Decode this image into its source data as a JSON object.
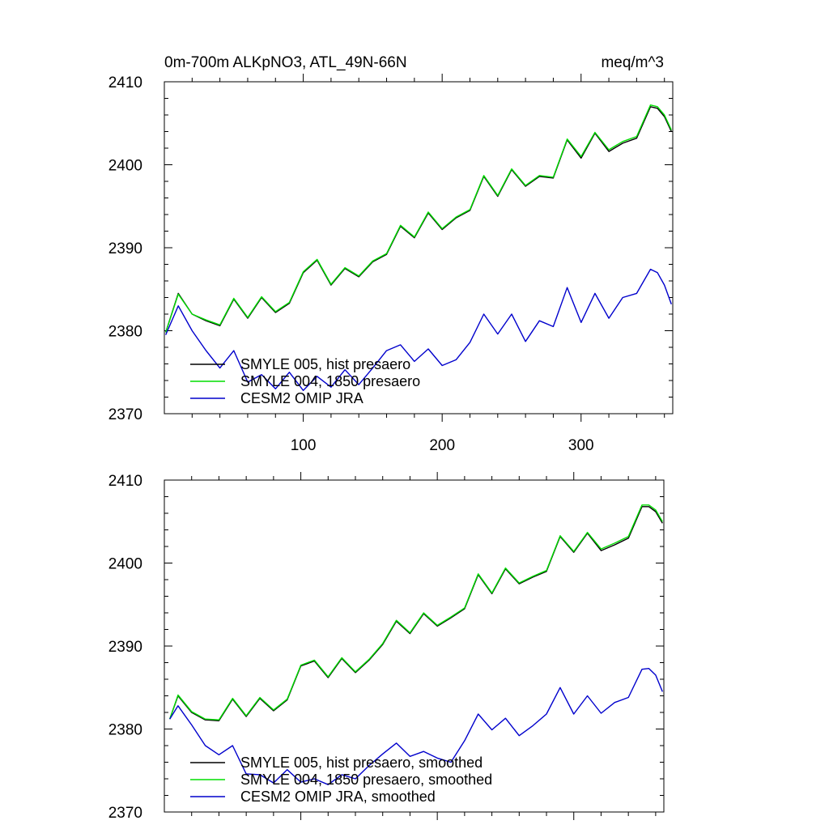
{
  "chart_data": [
    {
      "type": "line",
      "title_left": "0m-700m ALKpNO3, ATL_49N-66N",
      "title_right": "meq/m^3",
      "xlabel": "",
      "ylabel": "",
      "xlim": [
        0,
        366
      ],
      "ylim": [
        2370,
        2410
      ],
      "xticks": [
        100,
        200,
        300
      ],
      "xtick_labels": [
        "100",
        "200",
        "300"
      ],
      "yticks": [
        2370,
        2380,
        2390,
        2400,
        2410
      ],
      "ytick_labels": [
        "2370",
        "2380",
        "2390",
        "2400",
        "2410"
      ],
      "legend_position": "bottom-left",
      "x": [
        1,
        10,
        20,
        30,
        40,
        50,
        60,
        70,
        80,
        90,
        100,
        110,
        120,
        130,
        140,
        150,
        160,
        170,
        180,
        190,
        200,
        210,
        220,
        230,
        240,
        250,
        260,
        270,
        280,
        290,
        300,
        310,
        320,
        330,
        340,
        350,
        355,
        360,
        365
      ],
      "series": [
        {
          "name": "SMYLE 005, hist presaero",
          "color": "#000000",
          "values": [
            2379.8,
            2384.5,
            2382.0,
            2381.2,
            2380.6,
            2383.8,
            2381.5,
            2384.0,
            2382.2,
            2383.3,
            2387.0,
            2388.5,
            2385.5,
            2387.5,
            2386.5,
            2388.3,
            2389.2,
            2392.6,
            2391.2,
            2394.2,
            2392.2,
            2393.6,
            2394.5,
            2398.6,
            2396.2,
            2399.4,
            2397.4,
            2398.6,
            2398.4,
            2403.0,
            2400.8,
            2403.8,
            2401.6,
            2402.6,
            2403.2,
            2407.0,
            2406.8,
            2405.8,
            2404.0
          ]
        },
        {
          "name": "SMYLE 004, 1850 presaero",
          "color": "#00dd00",
          "values": [
            2379.8,
            2384.4,
            2382.0,
            2381.3,
            2380.7,
            2383.9,
            2381.6,
            2384.1,
            2382.3,
            2383.4,
            2387.1,
            2388.6,
            2385.6,
            2387.6,
            2386.6,
            2388.4,
            2389.3,
            2392.7,
            2391.3,
            2394.3,
            2392.3,
            2393.7,
            2394.6,
            2398.7,
            2396.3,
            2399.5,
            2397.5,
            2398.7,
            2398.5,
            2403.1,
            2401.0,
            2403.9,
            2401.8,
            2402.8,
            2403.4,
            2407.2,
            2407.0,
            2406.0,
            2404.2
          ]
        },
        {
          "name": "CESM2 OMIP JRA",
          "color": "#0000cc",
          "values": [
            2379.5,
            2383.0,
            2380.0,
            2377.6,
            2375.5,
            2377.6,
            2373.8,
            2374.7,
            2373.0,
            2375.0,
            2372.8,
            2374.5,
            2373.2,
            2375.3,
            2373.5,
            2375.5,
            2377.6,
            2378.3,
            2376.3,
            2377.8,
            2375.8,
            2376.5,
            2378.6,
            2382.0,
            2379.6,
            2382.0,
            2378.7,
            2381.2,
            2380.5,
            2385.2,
            2381.0,
            2384.5,
            2381.5,
            2384.0,
            2384.5,
            2387.4,
            2387.0,
            2385.5,
            2383.2
          ]
        }
      ]
    },
    {
      "type": "line",
      "title_left": "",
      "title_right": "",
      "xlabel": "",
      "ylabel": "",
      "xlim": [
        0,
        366
      ],
      "ylim": [
        2370,
        2410
      ],
      "xticks": [
        100,
        200,
        300
      ],
      "yticks": [
        2370,
        2380,
        2390,
        2400,
        2410
      ],
      "ytick_labels": [
        "2370",
        "2380",
        "2390",
        "2400",
        "2410"
      ],
      "legend_position": "bottom-left",
      "x": [
        4,
        10,
        20,
        30,
        40,
        50,
        60,
        70,
        80,
        90,
        100,
        110,
        120,
        130,
        140,
        150,
        160,
        170,
        180,
        190,
        200,
        210,
        220,
        230,
        240,
        250,
        260,
        270,
        280,
        290,
        300,
        310,
        320,
        330,
        340,
        350,
        355,
        360,
        365
      ],
      "series": [
        {
          "name": "SMYLE 005, hist presaero, smoothed",
          "color": "#000000",
          "values": [
            2381.2,
            2384.0,
            2382.0,
            2381.1,
            2381.0,
            2383.6,
            2381.5,
            2383.7,
            2382.2,
            2383.5,
            2387.6,
            2388.2,
            2386.2,
            2388.5,
            2386.8,
            2388.3,
            2390.2,
            2393.0,
            2391.5,
            2393.9,
            2392.4,
            2393.4,
            2394.5,
            2398.6,
            2396.3,
            2399.3,
            2397.5,
            2398.3,
            2399.0,
            2403.2,
            2401.3,
            2403.6,
            2401.5,
            2402.2,
            2403.0,
            2406.8,
            2406.8,
            2406.2,
            2404.8
          ]
        },
        {
          "name": "SMYLE 004, 1850 presaero, smoothed",
          "color": "#00dd00",
          "values": [
            2381.2,
            2384.1,
            2382.1,
            2381.2,
            2381.1,
            2383.7,
            2381.6,
            2383.8,
            2382.3,
            2383.6,
            2387.7,
            2388.3,
            2386.3,
            2388.6,
            2386.9,
            2388.4,
            2390.3,
            2393.1,
            2391.6,
            2394.0,
            2392.5,
            2393.5,
            2394.6,
            2398.7,
            2396.4,
            2399.4,
            2397.6,
            2398.4,
            2399.1,
            2403.3,
            2401.4,
            2403.7,
            2401.7,
            2402.4,
            2403.2,
            2407.0,
            2407.0,
            2406.4,
            2405.0
          ]
        },
        {
          "name": "CESM2 OMIP JRA, smoothed",
          "color": "#0000cc",
          "values": [
            2381.2,
            2382.8,
            2380.5,
            2378.0,
            2376.9,
            2378.0,
            2374.6,
            2374.5,
            2373.5,
            2375.1,
            2373.6,
            2374.0,
            2373.3,
            2374.5,
            2374.0,
            2375.6,
            2377.0,
            2378.3,
            2376.7,
            2377.3,
            2376.5,
            2376.0,
            2378.6,
            2381.8,
            2379.9,
            2381.3,
            2379.2,
            2380.4,
            2381.8,
            2385.0,
            2381.8,
            2384.0,
            2381.9,
            2383.2,
            2383.8,
            2387.2,
            2387.3,
            2386.5,
            2384.5
          ]
        }
      ]
    }
  ]
}
